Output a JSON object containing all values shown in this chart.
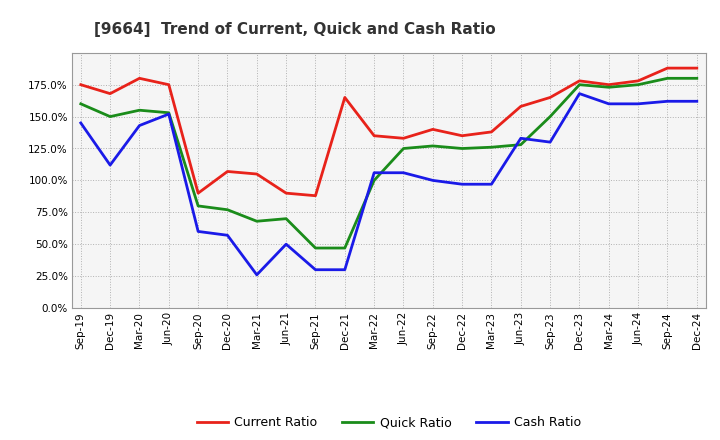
{
  "title": "[9664]  Trend of Current, Quick and Cash Ratio",
  "labels": [
    "Sep-19",
    "Dec-19",
    "Mar-20",
    "Jun-20",
    "Sep-20",
    "Dec-20",
    "Mar-21",
    "Jun-21",
    "Sep-21",
    "Dec-21",
    "Mar-22",
    "Jun-22",
    "Sep-22",
    "Dec-22",
    "Mar-23",
    "Jun-23",
    "Sep-23",
    "Dec-23",
    "Mar-24",
    "Jun-24",
    "Sep-24",
    "Dec-24"
  ],
  "current_ratio": [
    175,
    168,
    180,
    175,
    90,
    107,
    105,
    90,
    88,
    165,
    135,
    133,
    140,
    135,
    138,
    158,
    165,
    178,
    175,
    178,
    188,
    188
  ],
  "quick_ratio": [
    160,
    150,
    155,
    153,
    80,
    77,
    68,
    70,
    47,
    47,
    100,
    125,
    127,
    125,
    126,
    128,
    150,
    175,
    173,
    175,
    180,
    180
  ],
  "cash_ratio": [
    145,
    112,
    143,
    152,
    60,
    57,
    26,
    50,
    30,
    30,
    106,
    106,
    100,
    97,
    97,
    133,
    130,
    168,
    160,
    160,
    162,
    162
  ],
  "current_color": "#e8221a",
  "quick_color": "#1a8c1a",
  "cash_color": "#1a1ae8",
  "ylim": [
    0,
    200
  ],
  "yticks": [
    0,
    25,
    50,
    75,
    100,
    125,
    150,
    175
  ],
  "background_color": "#ffffff",
  "plot_bg_color": "#f5f5f5",
  "grid_color": "#aaaaaa",
  "line_width": 2.0
}
